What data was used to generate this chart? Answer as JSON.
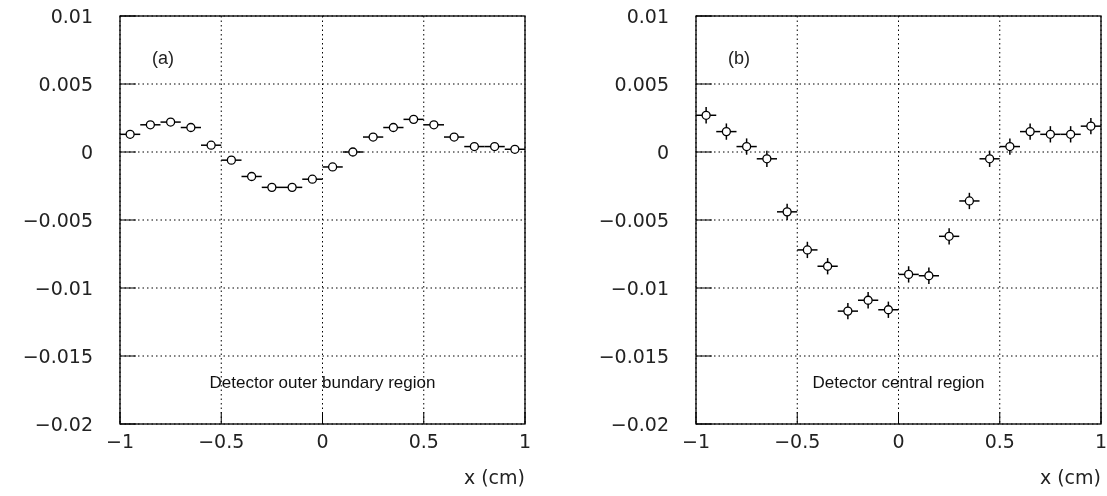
{
  "chart_data": [
    {
      "type": "scatter",
      "xlabel": "x (cm)",
      "annotations": [
        "(a)",
        "Detector outer bundary region"
      ],
      "x": [
        -0.95,
        -0.85,
        -0.75,
        -0.65,
        -0.55,
        -0.45,
        -0.35,
        -0.25,
        -0.15,
        -0.05,
        0.05,
        0.15,
        0.25,
        0.35,
        0.45,
        0.55,
        0.65,
        0.75,
        0.85,
        0.95
      ],
      "series": [
        {
          "color": "#000000",
          "values": [
            0.0013,
            0.002,
            0.0022,
            0.0018,
            0.0005,
            -0.0006,
            -0.0018,
            -0.0026,
            -0.0026,
            -0.002,
            -0.0011,
            0,
            0.0011,
            0.0018,
            0.0024,
            0.002,
            0.0011,
            0.0004,
            0.0004,
            0.0002
          ],
          "xerrors": [
            0.05,
            0.05,
            0.05,
            0.05,
            0.05,
            0.05,
            0.05,
            0.05,
            0.05,
            0.05,
            0.05,
            0.05,
            0.05,
            0.05,
            0.05,
            0.05,
            0.05,
            0.05,
            0.05,
            0.05
          ]
        }
      ],
      "xlim": [
        -1,
        1
      ],
      "xticks": [
        -1,
        -0.5,
        0,
        0.5,
        1
      ],
      "ylim": [
        -0.02,
        0.01
      ],
      "yticks": [
        -0.02,
        -0.015,
        -0.01,
        -0.005,
        0,
        0.005,
        0.01
      ],
      "grid": true,
      "marker": "circle"
    },
    {
      "type": "scatter",
      "xlabel": "x (cm)",
      "annotations": [
        "(b)",
        "Detector central region"
      ],
      "x": [
        -0.95,
        -0.85,
        -0.75,
        -0.65,
        -0.55,
        -0.45,
        -0.35,
        -0.25,
        -0.15,
        -0.05,
        0.05,
        0.15,
        0.25,
        0.35,
        0.45,
        0.55,
        0.65,
        0.75,
        0.85,
        0.95
      ],
      "series": [
        {
          "color": "#000000",
          "values": [
            0.0027,
            0.0015,
            0.0004,
            -0.0005,
            -0.0044,
            -0.0072,
            -0.0084,
            -0.0117,
            -0.0109,
            -0.0116,
            -0.009,
            -0.0091,
            -0.0062,
            -0.0036,
            -0.0005,
            0.0004,
            0.0015,
            0.0013,
            0.0013,
            0.0019
          ],
          "xerrors": [
            0.05,
            0.05,
            0.05,
            0.05,
            0.05,
            0.05,
            0.05,
            0.05,
            0.05,
            0.05,
            0.05,
            0.05,
            0.05,
            0.05,
            0.05,
            0.05,
            0.05,
            0.05,
            0.05,
            0.05
          ],
          "errors": [
            0.0006,
            0.0006,
            0.0006,
            0.0006,
            0.0006,
            0.0006,
            0.0006,
            0.0006,
            0.0006,
            0.0006,
            0.0006,
            0.0006,
            0.0006,
            0.0006,
            0.0006,
            0.0006,
            0.0006,
            0.0006,
            0.0006,
            0.0006
          ]
        }
      ],
      "xlim": [
        -1,
        1
      ],
      "xticks": [
        -1,
        -0.5,
        0,
        0.5,
        1
      ],
      "ylim": [
        -0.02,
        0.01
      ],
      "yticks": [
        -0.02,
        -0.015,
        -0.01,
        -0.005,
        0,
        0.005,
        0.01
      ],
      "grid": true,
      "marker": "circle"
    }
  ]
}
